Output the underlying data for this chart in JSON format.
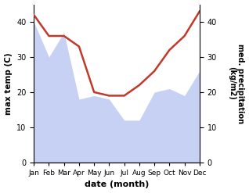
{
  "months": [
    "Jan",
    "Feb",
    "Mar",
    "Apr",
    "May",
    "Jun",
    "Jul",
    "Aug",
    "Sep",
    "Oct",
    "Nov",
    "Dec"
  ],
  "temperature": [
    42,
    36,
    36,
    33,
    20,
    19,
    19,
    22,
    26,
    32,
    36,
    43
  ],
  "precipitation": [
    40,
    30,
    37,
    18,
    19,
    18,
    12,
    12,
    20,
    21,
    19,
    26
  ],
  "temp_color": "#c0392b",
  "precip_color": "#b0bef0",
  "ylabel_left": "max temp (C)",
  "ylabel_right": "med. precipitation\n(kg/m2)",
  "xlabel": "date (month)",
  "ylim_left": [
    0,
    45
  ],
  "ylim_right": [
    0,
    45
  ],
  "yticks_left": [
    0,
    10,
    20,
    30,
    40
  ],
  "yticks_right": [
    0,
    10,
    20,
    30,
    40
  ],
  "background_color": "#ffffff",
  "temp_linewidth": 1.8,
  "fig_width": 3.18,
  "fig_height": 2.47,
  "dpi": 100
}
